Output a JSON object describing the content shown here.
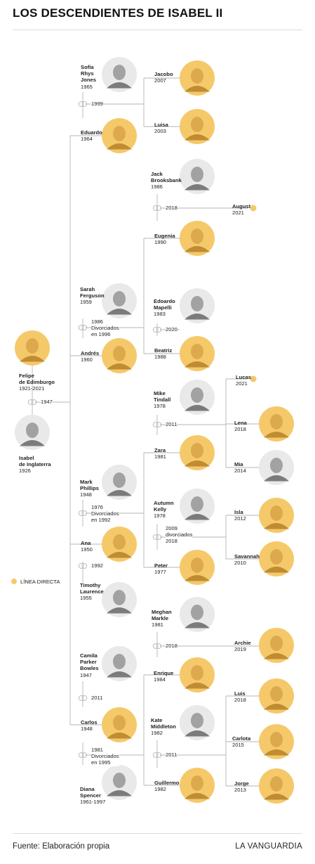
{
  "title": "LOS DESCENDIENTES DE ISABEL II",
  "footer": {
    "source": "Fuente: Elaboración propia",
    "brand": "LA VANGUARDIA"
  },
  "legend": {
    "label": "LÍNEA DIRECTA",
    "color": "#f5c96a"
  },
  "colors": {
    "direct": "#f5c96a",
    "photo": "#3a3a3a",
    "line": "#b5b5b5"
  },
  "people": {
    "felipe": {
      "name": "Felipe\nde Edimburgo",
      "years": "1921-2021",
      "direct": true
    },
    "isabel": {
      "name": "Isabel\nde Inglaterra",
      "years": "1926",
      "direct": false
    },
    "sofia": {
      "name": "Sofía\nRhys\nJones",
      "years": "1965",
      "direct": false
    },
    "eduardo": {
      "name": "Eduardo",
      "years": "1964",
      "direct": true
    },
    "jacobo": {
      "name": "Jacobo",
      "years": "2007",
      "direct": true
    },
    "luisa": {
      "name": "Luisa",
      "years": "2003",
      "direct": true
    },
    "jack": {
      "name": "Jack\nBrooksbank",
      "years": "1986",
      "direct": false
    },
    "august": {
      "name": "August",
      "years": "2021",
      "direct": true
    },
    "eugenia": {
      "name": "Eugenia",
      "years": "1990",
      "direct": true
    },
    "sarah": {
      "name": "Sarah\nFerguson",
      "years": "1959",
      "direct": false
    },
    "andres": {
      "name": "Andrés",
      "years": "1960",
      "direct": true
    },
    "edoardo": {
      "name": "Edoardo\nMapelli",
      "years": "1983",
      "direct": false
    },
    "beatriz": {
      "name": "Beatriz",
      "years": "1988",
      "direct": true
    },
    "mike": {
      "name": "Mike\nTindall",
      "years": "1978",
      "direct": false
    },
    "lucas": {
      "name": "Lucas",
      "years": "2021",
      "direct": true
    },
    "lena": {
      "name": "Lena",
      "years": "2018",
      "direct": true
    },
    "mia": {
      "name": "Mia",
      "years": "2014",
      "direct": false
    },
    "zara": {
      "name": "Zara",
      "years": "1981",
      "direct": true
    },
    "mark": {
      "name": "Mark\nPhillips",
      "years": "1948",
      "direct": false
    },
    "ana": {
      "name": "Ana",
      "years": "1950",
      "direct": true
    },
    "autumn": {
      "name": "Autumn\nKelly",
      "years": "1978",
      "direct": false
    },
    "isla": {
      "name": "Isla",
      "years": "2012",
      "direct": true
    },
    "savannah": {
      "name": "Savannah",
      "years": "2010",
      "direct": true
    },
    "peter": {
      "name": "Peter",
      "years": "1977",
      "direct": true
    },
    "timothy": {
      "name": "Timothy\nLaurence",
      "years": "1955",
      "direct": false
    },
    "meghan": {
      "name": "Meghan\nMarkle",
      "years": "1981",
      "direct": false
    },
    "archie": {
      "name": "Archie",
      "years": "2019",
      "direct": true
    },
    "camila": {
      "name": "Camila\nParker\nBowles",
      "years": "1947",
      "direct": false
    },
    "enrique": {
      "name": "Enrique",
      "years": "1984",
      "direct": true
    },
    "carlos": {
      "name": "Carlos",
      "years": "1948",
      "direct": true
    },
    "kate": {
      "name": "Kate\nMiddleton",
      "years": "1982",
      "direct": false
    },
    "luis": {
      "name": "Luis",
      "years": "2018",
      "direct": true
    },
    "carlota": {
      "name": "Carlota",
      "years": "2015",
      "direct": true
    },
    "jorge": {
      "name": "Jorge",
      "years": "2013",
      "direct": true
    },
    "guillermo": {
      "name": "Guillermo",
      "years": "1982",
      "direct": true
    },
    "diana": {
      "name": "Diana\nSpencer",
      "years": "1961-1997",
      "direct": false
    }
  },
  "unions": {
    "felipe_isabel": "1947",
    "sofia_eduardo": "1999",
    "jack_eugenia": "2018",
    "sarah_andres": "1986\nDivorciados\nen 1996",
    "edoardo_beatriz": "2020",
    "mike_zara": "2011",
    "mark_ana": "1976\nDivorciados\nen 1992",
    "autumn_peter": "2009\ndivorciados\n2018",
    "ana_timothy": "1992",
    "meghan_enrique": "2018",
    "camila_carlos": "2011",
    "kate_guillermo": "2011",
    "carlos_diana": "1981\nDivorciados\nen 1995"
  }
}
